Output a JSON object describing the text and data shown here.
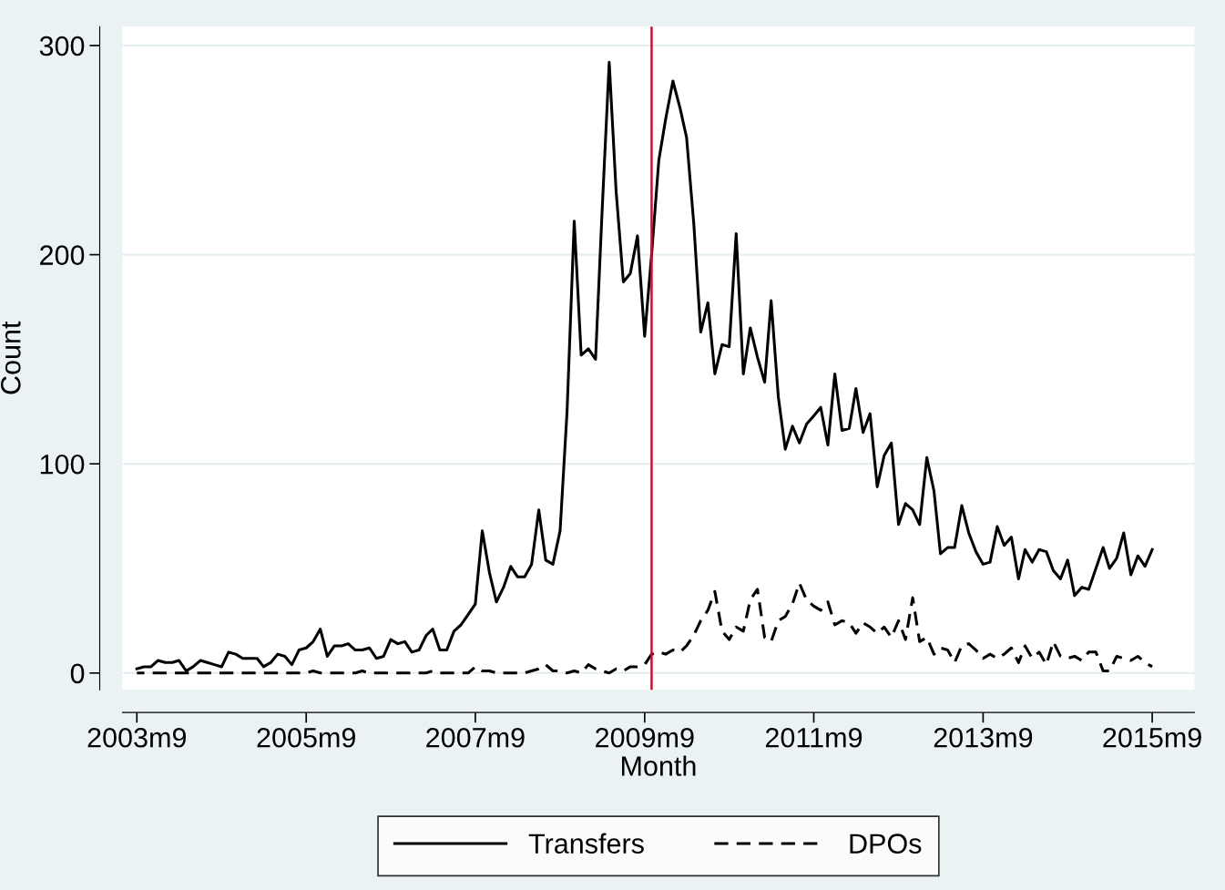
{
  "chart_data": {
    "type": "line",
    "xlabel": "Month",
    "ylabel": "Count",
    "x": [
      "2003-09",
      "2003-10",
      "2003-11",
      "2003-12",
      "2004-01",
      "2004-02",
      "2004-03",
      "2004-04",
      "2004-05",
      "2004-06",
      "2004-07",
      "2004-08",
      "2004-09",
      "2004-10",
      "2004-11",
      "2004-12",
      "2005-01",
      "2005-02",
      "2005-03",
      "2005-04",
      "2005-05",
      "2005-06",
      "2005-07",
      "2005-08",
      "2005-09",
      "2005-10",
      "2005-11",
      "2005-12",
      "2006-01",
      "2006-02",
      "2006-03",
      "2006-04",
      "2006-05",
      "2006-06",
      "2006-07",
      "2006-08",
      "2006-09",
      "2006-10",
      "2006-11",
      "2006-12",
      "2007-01",
      "2007-02",
      "2007-03",
      "2007-04",
      "2007-05",
      "2007-06",
      "2007-07",
      "2007-08",
      "2007-09",
      "2007-10",
      "2007-11",
      "2007-12",
      "2008-01",
      "2008-02",
      "2008-03",
      "2008-04",
      "2008-05",
      "2008-06",
      "2008-07",
      "2008-08",
      "2008-09",
      "2008-10",
      "2008-11",
      "2008-12",
      "2009-01",
      "2009-02",
      "2009-03",
      "2009-04",
      "2009-05",
      "2009-06",
      "2009-07",
      "2009-08",
      "2009-09",
      "2009-10",
      "2009-11",
      "2009-12",
      "2010-01",
      "2010-02",
      "2010-03",
      "2010-04",
      "2010-05",
      "2010-06",
      "2010-07",
      "2010-08",
      "2010-09",
      "2010-10",
      "2010-11",
      "2010-12",
      "2011-01",
      "2011-02",
      "2011-03",
      "2011-04",
      "2011-05",
      "2011-06",
      "2011-07",
      "2011-08",
      "2011-09",
      "2011-10",
      "2011-11",
      "2011-12",
      "2012-01",
      "2012-02",
      "2012-03",
      "2012-04",
      "2012-05",
      "2012-06",
      "2012-07",
      "2012-08",
      "2012-09",
      "2012-10",
      "2012-11",
      "2012-12",
      "2013-01",
      "2013-02",
      "2013-03",
      "2013-04",
      "2013-05",
      "2013-06",
      "2013-07",
      "2013-08",
      "2013-09",
      "2013-10",
      "2013-11",
      "2013-12",
      "2014-01",
      "2014-02",
      "2014-03",
      "2014-04",
      "2014-05",
      "2014-06",
      "2014-07",
      "2014-08",
      "2014-09",
      "2014-10",
      "2014-11",
      "2014-12",
      "2015-01",
      "2015-02",
      "2015-03",
      "2015-04",
      "2015-05",
      "2015-06",
      "2015-07",
      "2015-08",
      "2015-09"
    ],
    "series": [
      {
        "name": "Transfers",
        "color": "#000000",
        "line_style": "solid",
        "values": [
          2,
          3,
          3,
          6,
          5,
          5,
          6,
          1,
          3,
          6,
          5,
          4,
          3,
          10,
          9,
          7,
          7,
          7,
          3,
          5,
          9,
          8,
          4,
          11,
          12,
          15,
          21,
          8,
          13,
          13,
          14,
          11,
          11,
          12,
          7,
          8,
          16,
          14,
          15,
          10,
          11,
          18,
          21,
          11,
          11,
          20,
          23,
          28,
          33,
          68,
          48,
          34,
          41,
          51,
          46,
          46,
          52,
          78,
          54,
          52,
          68,
          125,
          216,
          152,
          155,
          150,
          220,
          292,
          230,
          187,
          191,
          209,
          161,
          200,
          245,
          265,
          283,
          270,
          256,
          215,
          163,
          177,
          143,
          157,
          156,
          210,
          143,
          165,
          151,
          139,
          178,
          132,
          107,
          118,
          110,
          119,
          123,
          127,
          109,
          143,
          116,
          117,
          136,
          115,
          124,
          89,
          104,
          110,
          71,
          81,
          78,
          71,
          103,
          87,
          57,
          60,
          60,
          80,
          67,
          58,
          52,
          53,
          70,
          61,
          65,
          45,
          59,
          53,
          59,
          58,
          49,
          45,
          54,
          37,
          41,
          40,
          50,
          60,
          50,
          55,
          67,
          47,
          56,
          51,
          59
        ]
      },
      {
        "name": "DPOs",
        "color": "#000000",
        "line_style": "dashed",
        "values": [
          0,
          0,
          0,
          0,
          0,
          0,
          0,
          0,
          0,
          0,
          0,
          0,
          0,
          0,
          0,
          0,
          0,
          0,
          0,
          0,
          0,
          0,
          0,
          0,
          0,
          1,
          0,
          0,
          0,
          0,
          0,
          0,
          1,
          0,
          0,
          0,
          0,
          0,
          0,
          0,
          0,
          0,
          1,
          0,
          0,
          0,
          0,
          0,
          3,
          1,
          1,
          0,
          0,
          0,
          0,
          0,
          1,
          2,
          4,
          1,
          1,
          0,
          1,
          0,
          4,
          2,
          1,
          0,
          2,
          1,
          3,
          3,
          4,
          9,
          10,
          9,
          11,
          10,
          13,
          18,
          25,
          30,
          39,
          20,
          16,
          22,
          20,
          35,
          40,
          17,
          15,
          25,
          27,
          33,
          43,
          35,
          32,
          30,
          34,
          23,
          25,
          24,
          19,
          24,
          22,
          19,
          22,
          17,
          25,
          16,
          36,
          15,
          17,
          9,
          12,
          11,
          5,
          13,
          14,
          11,
          7,
          9,
          7,
          9,
          12,
          5,
          13,
          7,
          10,
          4,
          15,
          8,
          7,
          8,
          6,
          10,
          10,
          1,
          1,
          8,
          7,
          6,
          8,
          5,
          3
        ]
      }
    ],
    "xlim": [
      "2003-07",
      "2016-03"
    ],
    "xticks": [
      {
        "value": "2003-09",
        "label": "2003m9"
      },
      {
        "value": "2005-09",
        "label": "2005m9"
      },
      {
        "value": "2007-09",
        "label": "2007m9"
      },
      {
        "value": "2009-09",
        "label": "2009m9"
      },
      {
        "value": "2011-09",
        "label": "2011m9"
      },
      {
        "value": "2013-09",
        "label": "2013m9"
      },
      {
        "value": "2015-09",
        "label": "2015m9"
      }
    ],
    "ylim": [
      -8,
      309
    ],
    "yticks": [
      0,
      100,
      200,
      300
    ],
    "grid": "y",
    "legend": "bottom",
    "marker": "none",
    "ref_lines": [
      {
        "axis": "x",
        "value": "2009-10",
        "color": "#c8102e",
        "line_style": "solid"
      }
    ]
  }
}
